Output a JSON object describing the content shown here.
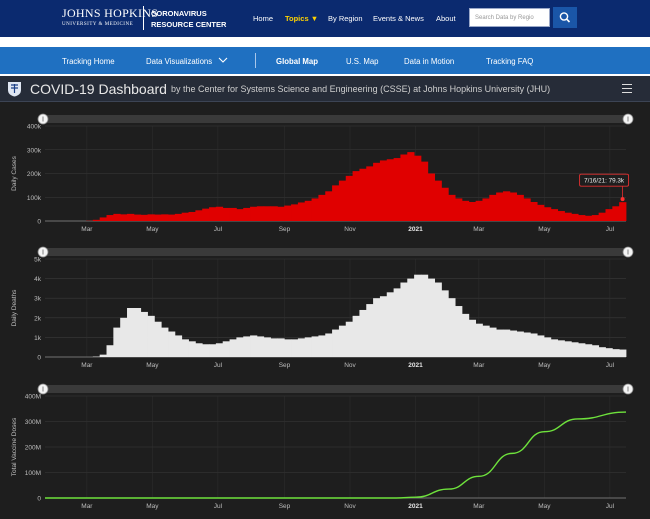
{
  "header": {
    "brand_line1": "Johns Hopkins",
    "brand_line2": "UNIVERSITY & MEDICINE",
    "center_line1": "CORONAVIRUS",
    "center_line2": "RESOURCE CENTER",
    "nav": [
      "Home",
      "Topics ▼",
      "By Region",
      "Events & News",
      "About"
    ],
    "active_nav": "Topics",
    "search_placeholder": "Search Data by Regio"
  },
  "subnav": [
    "Tracking Home",
    "Data Visualizations",
    "Global Map",
    "U.S. Map",
    "Data in Motion",
    "Tracking FAQ"
  ],
  "active_subnav": "Global Map",
  "dashboard": {
    "title": "COVID-19 Dashboard",
    "subtitle": "by the Center for Systems Science and Engineering (CSSE) at Johns Hopkins University (JHU)"
  },
  "chart_data": [
    {
      "type": "bar",
      "ylabel": "Daily Cases",
      "xlabel": "",
      "x_ticks": [
        "Mar",
        "May",
        "Jul",
        "Sep",
        "Nov",
        "2021",
        "Mar",
        "May",
        "Jul"
      ],
      "y_ticks": [
        "0",
        "100k",
        "200k",
        "300k",
        "400k"
      ],
      "ylim": [
        0,
        400000
      ],
      "color": "#e00000",
      "tooltip": "7/16/21: 79.3k",
      "values_weekly": [
        0,
        0,
        0,
        0,
        0,
        0,
        1000,
        5000,
        15000,
        25000,
        30000,
        28000,
        30000,
        27000,
        26000,
        28000,
        27000,
        28000,
        27000,
        30000,
        35000,
        38000,
        45000,
        52000,
        58000,
        60000,
        55000,
        55000,
        50000,
        55000,
        60000,
        62000,
        62000,
        62000,
        60000,
        65000,
        70000,
        78000,
        85000,
        95000,
        110000,
        125000,
        150000,
        170000,
        190000,
        210000,
        220000,
        230000,
        245000,
        255000,
        260000,
        265000,
        280000,
        290000,
        275000,
        250000,
        200000,
        170000,
        140000,
        110000,
        95000,
        85000,
        80000,
        85000,
        95000,
        110000,
        120000,
        125000,
        120000,
        110000,
        95000,
        80000,
        68000,
        58000,
        50000,
        42000,
        35000,
        30000,
        25000,
        22000,
        25000,
        35000,
        50000,
        62000,
        79300
      ]
    },
    {
      "type": "bar",
      "ylabel": "Daily Deaths",
      "xlabel": "",
      "x_ticks": [
        "Mar",
        "May",
        "Jul",
        "Sep",
        "Nov",
        "2021",
        "Mar",
        "May",
        "Jul"
      ],
      "y_ticks": [
        "0",
        "1k",
        "2k",
        "3k",
        "4k",
        "5k"
      ],
      "ylim": [
        0,
        5000
      ],
      "color": "#e8e8e8",
      "values_weekly": [
        0,
        0,
        0,
        0,
        0,
        0,
        0,
        20,
        120,
        600,
        1500,
        2000,
        2500,
        2500,
        2300,
        2100,
        1800,
        1500,
        1300,
        1100,
        900,
        800,
        700,
        650,
        650,
        700,
        800,
        900,
        1000,
        1050,
        1100,
        1050,
        1000,
        950,
        950,
        900,
        900,
        950,
        1000,
        1050,
        1100,
        1200,
        1400,
        1600,
        1800,
        2100,
        2400,
        2700,
        3000,
        3100,
        3300,
        3500,
        3800,
        4000,
        4200,
        4200,
        4000,
        3800,
        3400,
        3000,
        2600,
        2200,
        1900,
        1700,
        1600,
        1500,
        1400,
        1400,
        1350,
        1300,
        1250,
        1200,
        1100,
        1000,
        900,
        850,
        800,
        750,
        700,
        650,
        600,
        500,
        450,
        400,
        380
      ]
    },
    {
      "type": "line",
      "ylabel": "Total Vaccine Doses",
      "xlabel": "",
      "x_ticks": [
        "Mar",
        "May",
        "Jul",
        "Sep",
        "Nov",
        "2021",
        "Mar",
        "May",
        "Jul"
      ],
      "y_ticks": [
        "0",
        "100M",
        "200M",
        "300M",
        "400M"
      ],
      "ylim": [
        0,
        400000000
      ],
      "color": "#6ee23c",
      "x": [
        "2020-01-22",
        "2020-12-14",
        "2021-01-01",
        "2021-02-01",
        "2021-03-01",
        "2021-04-01",
        "2021-05-01",
        "2021-06-01",
        "2021-07-16"
      ],
      "values": [
        0,
        0,
        3000000,
        35000000,
        85000000,
        175000000,
        260000000,
        310000000,
        337000000
      ]
    }
  ]
}
